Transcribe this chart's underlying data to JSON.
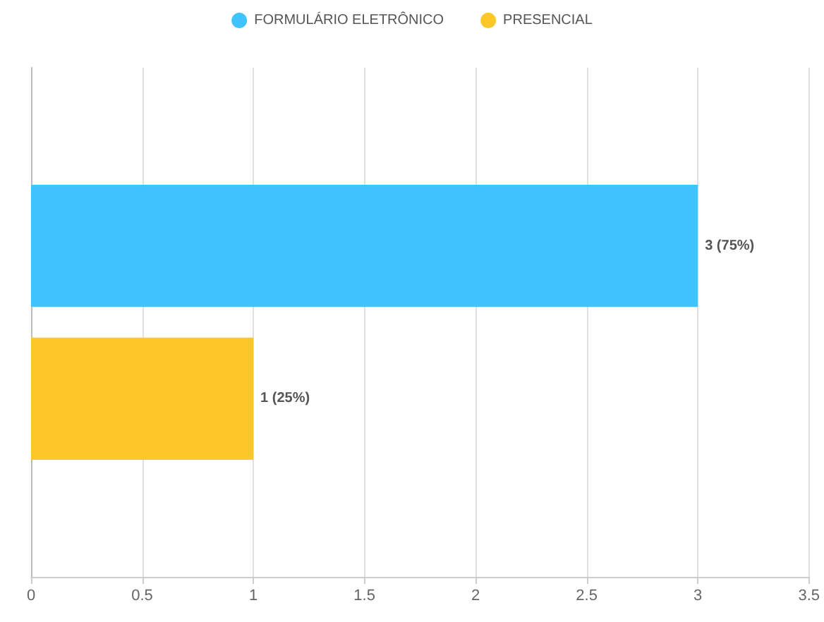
{
  "chart_data": {
    "type": "bar",
    "orientation": "horizontal",
    "categories": [
      null
    ],
    "series": [
      {
        "name": "FORMULÁRIO ELETRÔNICO",
        "color": "#40c4ff",
        "values": [
          3
        ],
        "value_labels": [
          "3 (75%)"
        ]
      },
      {
        "name": "PRESENCIAL",
        "color": "#fdc727",
        "values": [
          1
        ],
        "value_labels": [
          "1 (25%)"
        ]
      }
    ],
    "xlim": [
      0,
      3.5
    ],
    "xticks": [
      0,
      0.5,
      1,
      1.5,
      2,
      2.5,
      3,
      3.5
    ],
    "grid": "x",
    "legend": "top"
  }
}
